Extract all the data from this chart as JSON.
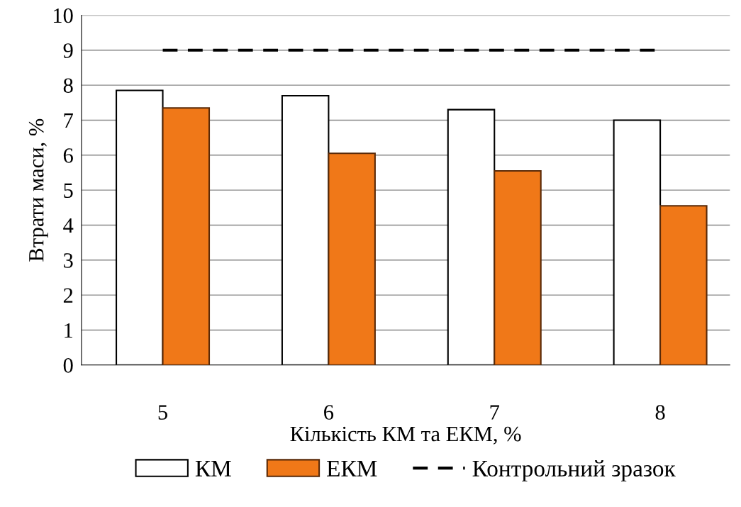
{
  "chart_data": {
    "type": "bar",
    "xlabel": "Кількість КМ та ЕКМ, %",
    "ylabel": "Втрати маси, %",
    "categories": [
      "5",
      "6",
      "7",
      "8"
    ],
    "series": [
      {
        "name": "КМ",
        "color": "#ffffff",
        "values": [
          7.85,
          7.7,
          7.3,
          7.0
        ]
      },
      {
        "name": "ЕКМ",
        "color": "#f07818",
        "values": [
          7.35,
          6.05,
          5.55,
          4.55
        ]
      },
      {
        "name": "Контрольний зразок",
        "type": "line",
        "color": "#000000",
        "line_style": "dashed",
        "values": [
          9,
          9,
          9,
          9
        ]
      }
    ],
    "ylim": [
      0,
      10
    ],
    "yticks": [
      0,
      1,
      2,
      3,
      4,
      5,
      6,
      7,
      8,
      9,
      10
    ],
    "grid": "y",
    "legend": "bottom"
  }
}
